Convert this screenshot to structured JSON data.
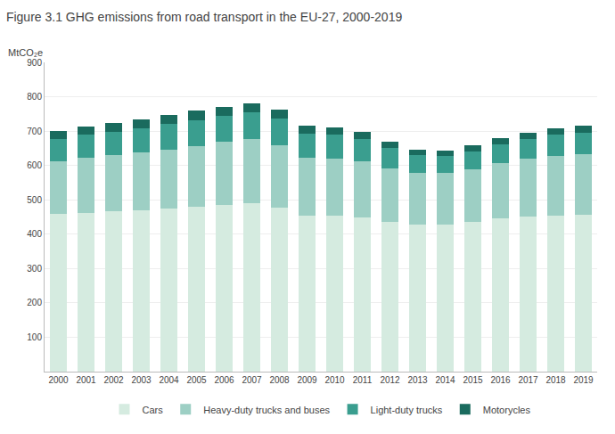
{
  "chart_data": {
    "type": "bar",
    "stacked": true,
    "title": "Figure 3.1 GHG emissions from road transport in the EU-27, 2000-2019",
    "ylabel": "MtCO₂e",
    "categories": [
      "2000",
      "2001",
      "2002",
      "2003",
      "2004",
      "2005",
      "2006",
      "2007",
      "2008",
      "2009",
      "2010",
      "2011",
      "2012",
      "2013",
      "2014",
      "2015",
      "2016",
      "2017",
      "2018",
      "2019"
    ],
    "series": [
      {
        "name": "Cars",
        "color": "#d5ebe0",
        "values": [
          458,
          462,
          466,
          470,
          475,
          480,
          486,
          490,
          478,
          455,
          455,
          450,
          435,
          428,
          428,
          436,
          446,
          452,
          455,
          457
        ]
      },
      {
        "name": "Heavy-duty trucks and buses",
        "color": "#9dcfc4",
        "values": [
          155,
          160,
          163,
          167,
          172,
          176,
          182,
          186,
          182,
          168,
          166,
          163,
          157,
          150,
          150,
          153,
          160,
          167,
          172,
          175
        ]
      },
      {
        "name": "Light-duty trucks",
        "color": "#3a9e8f",
        "values": [
          65,
          68,
          70,
          72,
          74,
          76,
          76,
          78,
          76,
          70,
          68,
          65,
          58,
          52,
          50,
          52,
          56,
          58,
          62,
          64
        ]
      },
      {
        "name": "Motorycles",
        "color": "#1a6b5e",
        "values": [
          22,
          23,
          24,
          25,
          26,
          27,
          27,
          28,
          27,
          24,
          22,
          21,
          19,
          17,
          16,
          17,
          18,
          19,
          19,
          19
        ]
      }
    ],
    "ylim": [
      0,
      900
    ],
    "yticks": [
      100,
      200,
      300,
      400,
      500,
      600,
      700,
      800,
      900
    ],
    "grid": true,
    "legend": "bottom"
  }
}
